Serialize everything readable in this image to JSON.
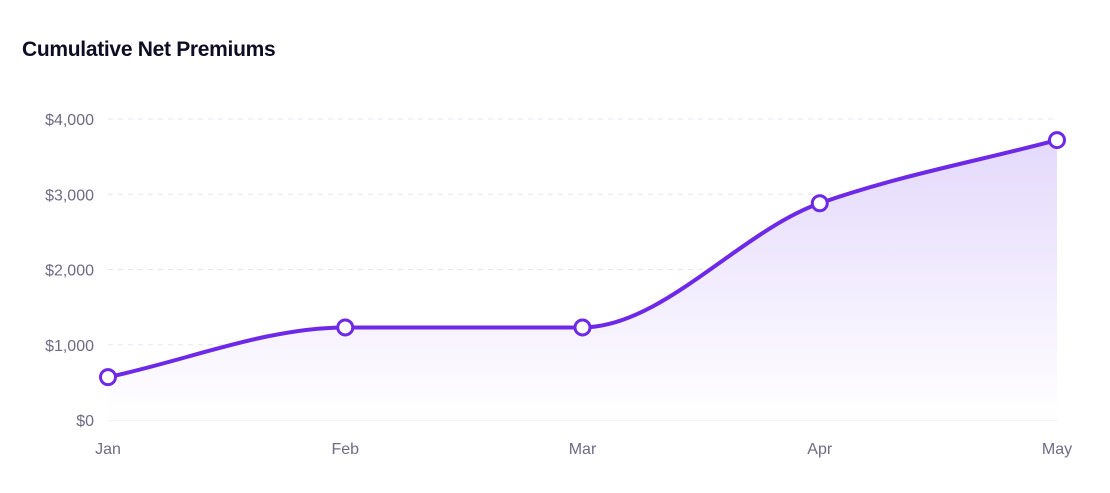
{
  "chart_data": {
    "type": "area",
    "title": "Cumulative Net Premiums",
    "xlabel": "",
    "ylabel": "",
    "categories": [
      "Jan",
      "Feb",
      "Mar",
      "Apr",
      "May"
    ],
    "series": [
      {
        "values": [
          570,
          1230,
          1230,
          2880,
          3720
        ]
      }
    ],
    "ylim": [
      0,
      4000
    ],
    "yticks": [
      0,
      1000,
      2000,
      3000,
      4000
    ],
    "ytick_labels": [
      "$0",
      "$1,000",
      "$2,000",
      "$3,000",
      "$4,000"
    ],
    "grid": true,
    "legend": "none",
    "colors": {
      "line": "#6d28e8",
      "fill_top": "#e4d9fc",
      "fill_bottom": "#ffffff",
      "point_fill": "#ffffff",
      "grid": "#e6e6ee",
      "tick_text": "#6e6b85",
      "title_text": "#0f0d23"
    }
  }
}
